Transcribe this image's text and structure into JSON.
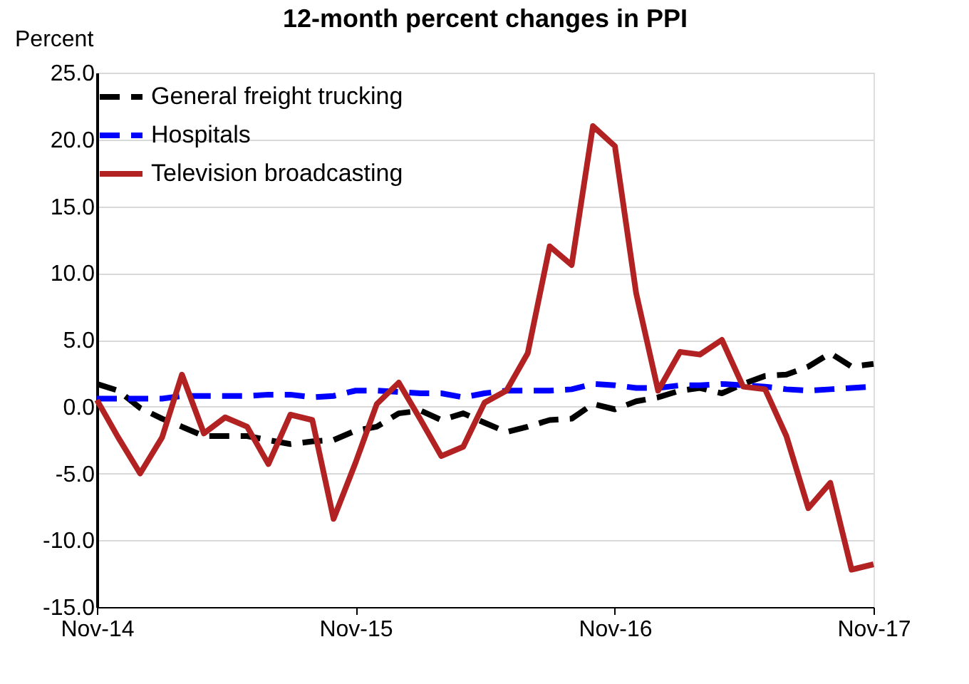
{
  "chart_data": {
    "type": "line",
    "title": "12-month percent changes in PPI",
    "ylabel": "Percent",
    "x": [
      "2014-11",
      "2014-12",
      "2015-01",
      "2015-02",
      "2015-03",
      "2015-04",
      "2015-05",
      "2015-06",
      "2015-07",
      "2015-08",
      "2015-09",
      "2015-10",
      "2015-11",
      "2015-12",
      "2016-01",
      "2016-02",
      "2016-03",
      "2016-04",
      "2016-05",
      "2016-06",
      "2016-07",
      "2016-08",
      "2016-09",
      "2016-10",
      "2016-11",
      "2016-12",
      "2017-01",
      "2017-02",
      "2017-03",
      "2017-04",
      "2017-05",
      "2017-06",
      "2017-07",
      "2017-08",
      "2017-09",
      "2017-10",
      "2017-11"
    ],
    "series": [
      {
        "name": "General freight trucking",
        "color": "#000000",
        "line_style": "dashed",
        "values": [
          1.7,
          1.2,
          -0.1,
          -0.9,
          -1.5,
          -2.2,
          -2.2,
          -2.2,
          -2.5,
          -2.8,
          -2.6,
          -2.5,
          -1.8,
          -1.5,
          -0.5,
          -0.3,
          -1.0,
          -0.5,
          -1.2,
          -1.9,
          -1.5,
          -1.0,
          -0.9,
          0.2,
          -0.2,
          0.4,
          0.7,
          1.2,
          1.4,
          1.0,
          1.7,
          2.3,
          2.4,
          3.0,
          4.0,
          3.0,
          3.2
        ]
      },
      {
        "name": "Hospitals",
        "color": "#0000ff",
        "line_style": "dashed",
        "values": [
          0.6,
          0.6,
          0.6,
          0.6,
          0.8,
          0.8,
          0.8,
          0.8,
          0.9,
          0.9,
          0.7,
          0.8,
          1.2,
          1.2,
          1.1,
          1.0,
          1.0,
          0.7,
          1.0,
          1.2,
          1.2,
          1.2,
          1.3,
          1.7,
          1.6,
          1.4,
          1.4,
          1.6,
          1.6,
          1.7,
          1.6,
          1.5,
          1.3,
          1.2,
          1.3,
          1.4,
          1.5
        ]
      },
      {
        "name": "Television broadcasting",
        "color": "#b22222",
        "line_style": "solid",
        "values": [
          0.5,
          -2.3,
          -5.0,
          -2.3,
          2.4,
          -2.0,
          -0.8,
          -1.5,
          -4.3,
          -0.6,
          -1.0,
          -8.4,
          -4.2,
          0.2,
          1.8,
          -1.0,
          -3.7,
          -3.0,
          0.3,
          1.2,
          4.0,
          12.0,
          10.6,
          21.0,
          19.5,
          8.5,
          1.2,
          4.1,
          3.9,
          5.0,
          1.5,
          1.3,
          -2.2,
          -7.6,
          -5.7,
          -12.2,
          -11.8
        ]
      }
    ],
    "xlim": [
      "2014-11",
      "2017-11"
    ],
    "xticks": [
      {
        "value": "2014-11",
        "label": "Nov-14"
      },
      {
        "value": "2015-11",
        "label": "Nov-15"
      },
      {
        "value": "2016-11",
        "label": "Nov-16"
      },
      {
        "value": "2017-11",
        "label": "Nov-17"
      }
    ],
    "ylim": [
      -15,
      25
    ],
    "yticks": [
      {
        "value": -15,
        "label": "-15.0"
      },
      {
        "value": -10,
        "label": "-10.0"
      },
      {
        "value": -5,
        "label": "-5.0"
      },
      {
        "value": 0,
        "label": "0.0"
      },
      {
        "value": 5,
        "label": "5.0"
      },
      {
        "value": 10,
        "label": "10.0"
      },
      {
        "value": 15,
        "label": "15.0"
      },
      {
        "value": 20,
        "label": "20.0"
      },
      {
        "value": 25,
        "label": "25.0"
      }
    ],
    "grid": "y",
    "legend": "top left",
    "marker": "none"
  }
}
